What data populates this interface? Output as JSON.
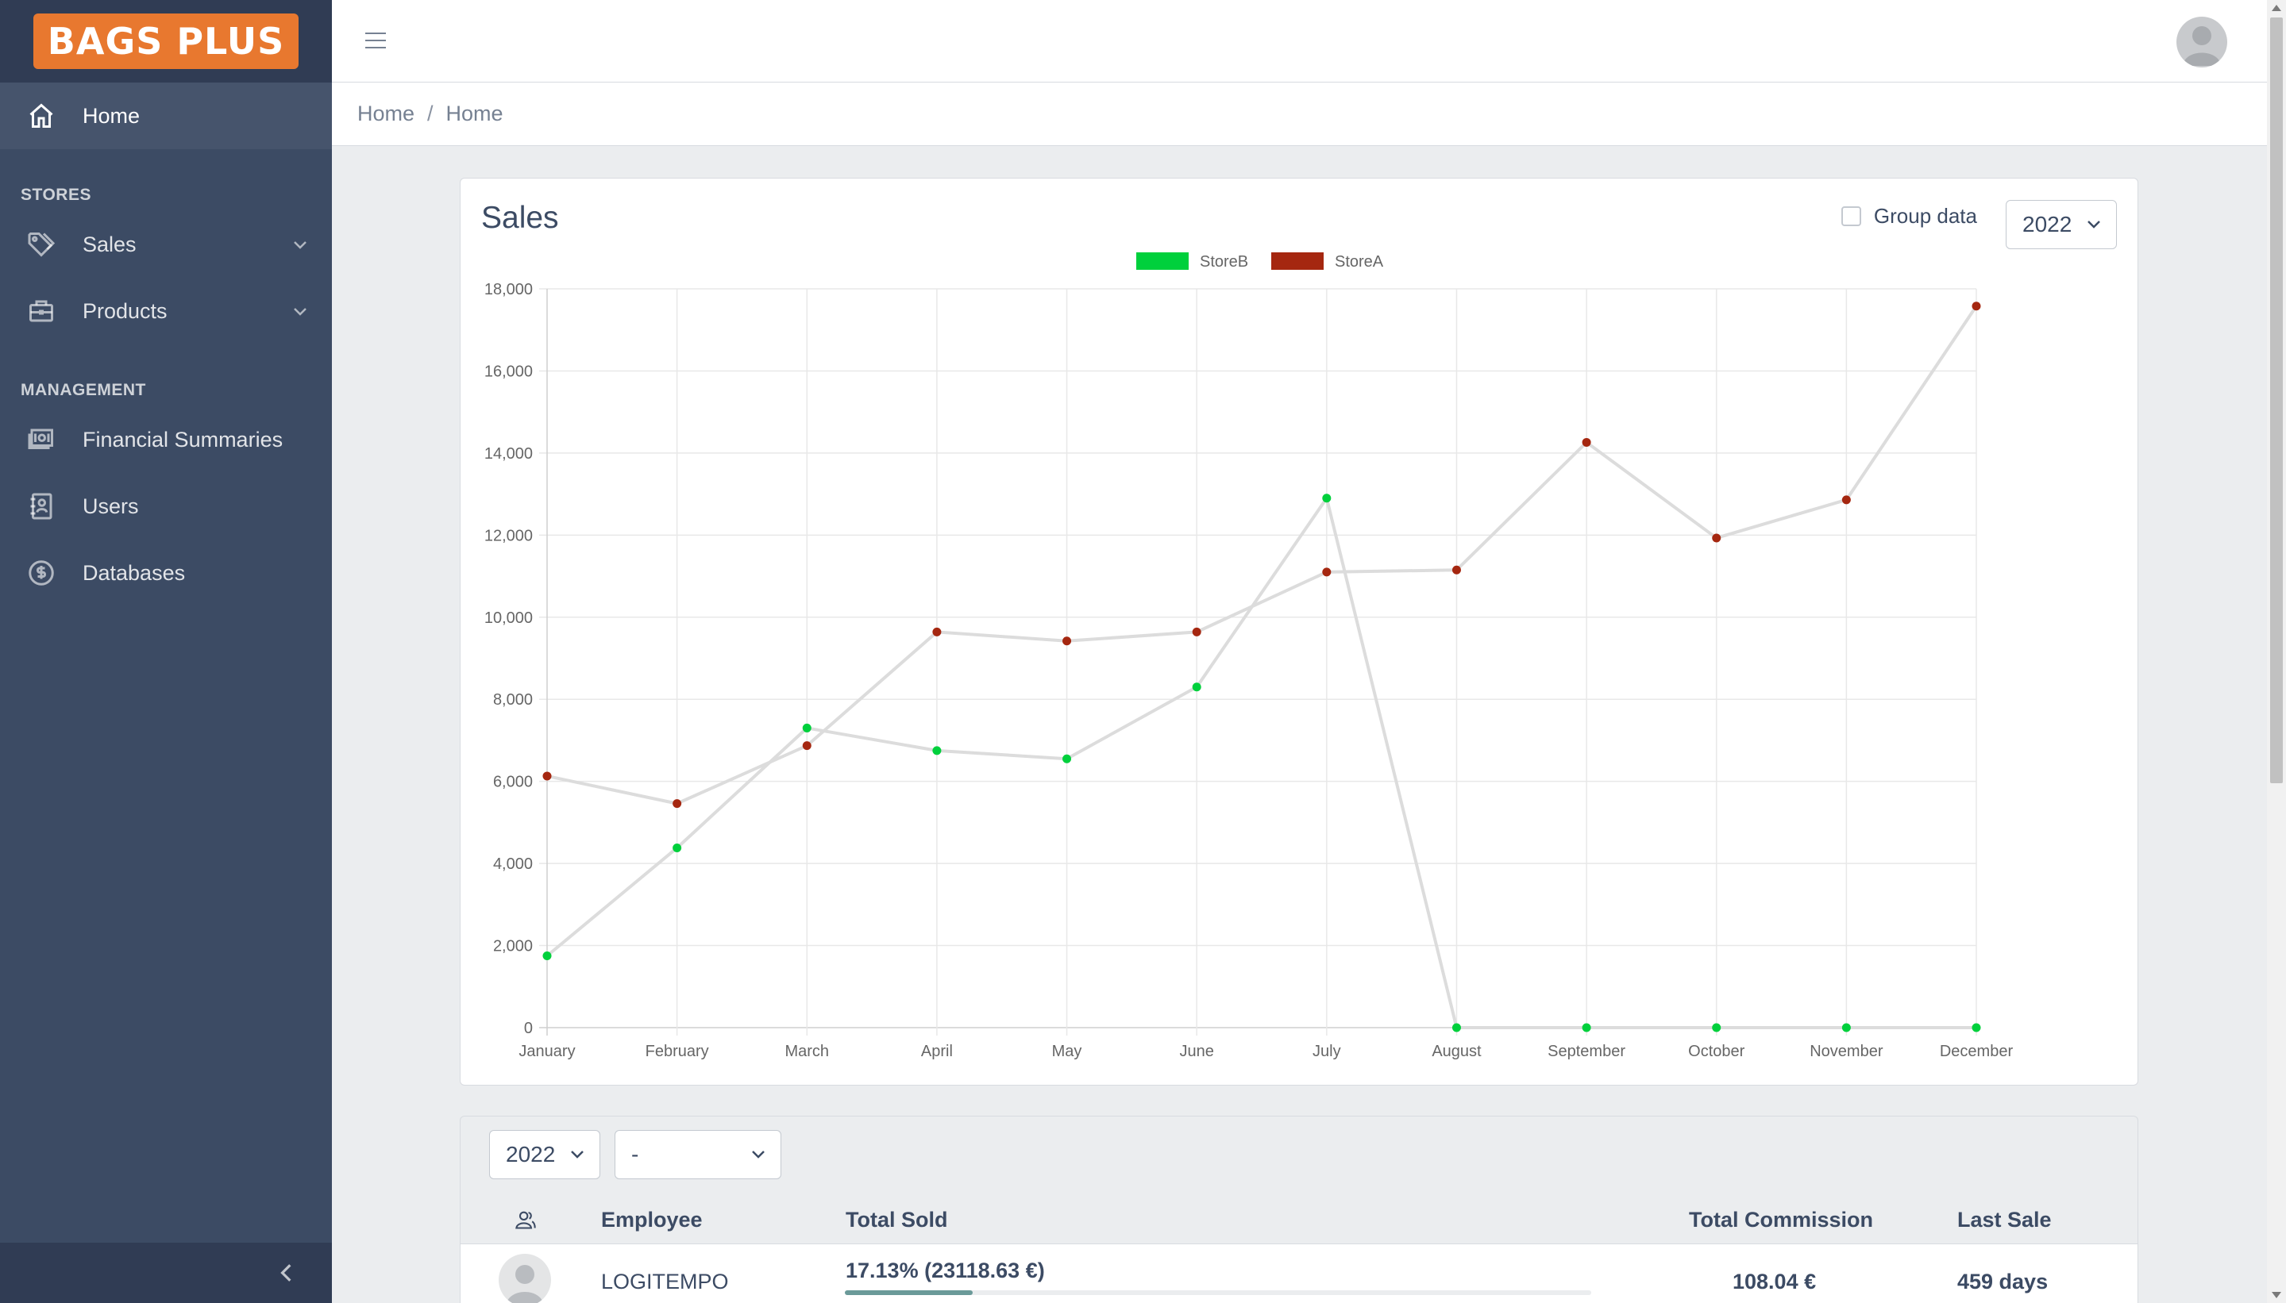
{
  "brand": {
    "logo_text": "BAGS PLUS",
    "color": "#e8782f"
  },
  "sidebar": {
    "home_label": "Home",
    "sections": [
      {
        "title": "STORES",
        "items": [
          {
            "label": "Sales",
            "icon": "tag-icon",
            "expandable": true
          },
          {
            "label": "Products",
            "icon": "briefcase-icon",
            "expandable": true
          }
        ]
      },
      {
        "title": "MANAGEMENT",
        "items": [
          {
            "label": "Financial Summaries",
            "icon": "money-icon"
          },
          {
            "label": "Users",
            "icon": "contact-icon"
          },
          {
            "label": "Databases",
            "icon": "dollar-circle-icon"
          }
        ]
      }
    ]
  },
  "header": {
    "menu_icon": "hamburger-icon",
    "avatar_icon": "user-avatar-icon"
  },
  "breadcrumb": [
    "Home",
    "Home"
  ],
  "sales_card": {
    "title": "Sales",
    "group_data_label": "Group data",
    "group_data_checked": false,
    "year": "2022"
  },
  "chart_data": {
    "type": "line",
    "categories": [
      "January",
      "February",
      "March",
      "April",
      "May",
      "June",
      "July",
      "August",
      "September",
      "October",
      "November",
      "December"
    ],
    "series": [
      {
        "name": "StoreB",
        "color": "#00d03c",
        "values": [
          1750,
          4380,
          7300,
          6750,
          6550,
          8300,
          12900,
          0,
          0,
          0,
          0,
          0
        ]
      },
      {
        "name": "StoreA",
        "color": "#a52710",
        "values": [
          6130,
          5460,
          6870,
          9640,
          9420,
          9640,
          11100,
          11150,
          14260,
          11930,
          12860,
          17580
        ]
      }
    ],
    "ylim": [
      0,
      18000
    ],
    "yticks": [
      "0",
      "2,000",
      "4,000",
      "6,000",
      "8,000",
      "10,000",
      "12,000",
      "14,000",
      "16,000",
      "18,000"
    ],
    "legend_position": "top-center",
    "line_color": "#dcdcdc",
    "grid": true
  },
  "table_card": {
    "year_filter": "2022",
    "second_filter": "-",
    "columns": {
      "employee": "Employee",
      "total_sold": "Total Sold",
      "total_commission": "Total Commission",
      "last_sale": "Last Sale"
    },
    "rows": [
      {
        "employee": "LOGITEMPO",
        "total_sold": "17.13% (23118.63 €)",
        "progress": 0.1713,
        "total_commission": "108.04 €",
        "last_sale": "459 days"
      }
    ]
  }
}
